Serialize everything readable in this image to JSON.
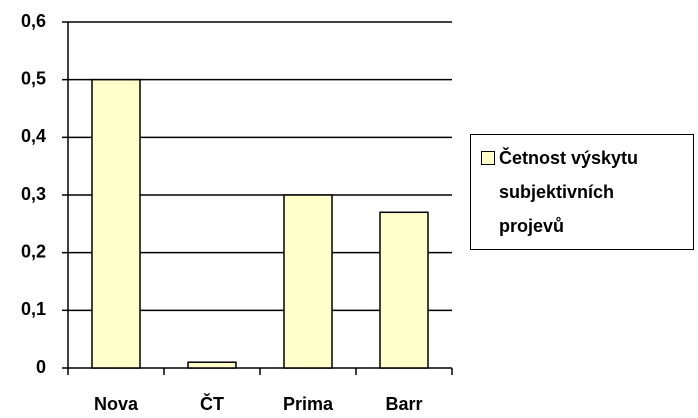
{
  "chart_data": {
    "type": "bar",
    "categories": [
      "Nova",
      "ČT",
      "Prima",
      "Barr"
    ],
    "series": [
      {
        "name": "Četnost výskytu subjektivních projevů",
        "color": "#ffffcc",
        "values": [
          0.5,
          0.01,
          0.3,
          0.27
        ]
      }
    ],
    "ylim": [
      0,
      0.6
    ],
    "yticks": [
      0,
      {
        "value": 0.1,
        "label": "0,1"
      },
      {
        "value": 0.2,
        "label": "0,2"
      },
      {
        "value": 0.3,
        "label": "0,3"
      },
      {
        "value": 0.4,
        "label": "0,4"
      },
      {
        "value": 0.5,
        "label": "0,5"
      },
      {
        "value": 0.6,
        "label": "0,6"
      }
    ],
    "grid": true,
    "legend": "right"
  }
}
